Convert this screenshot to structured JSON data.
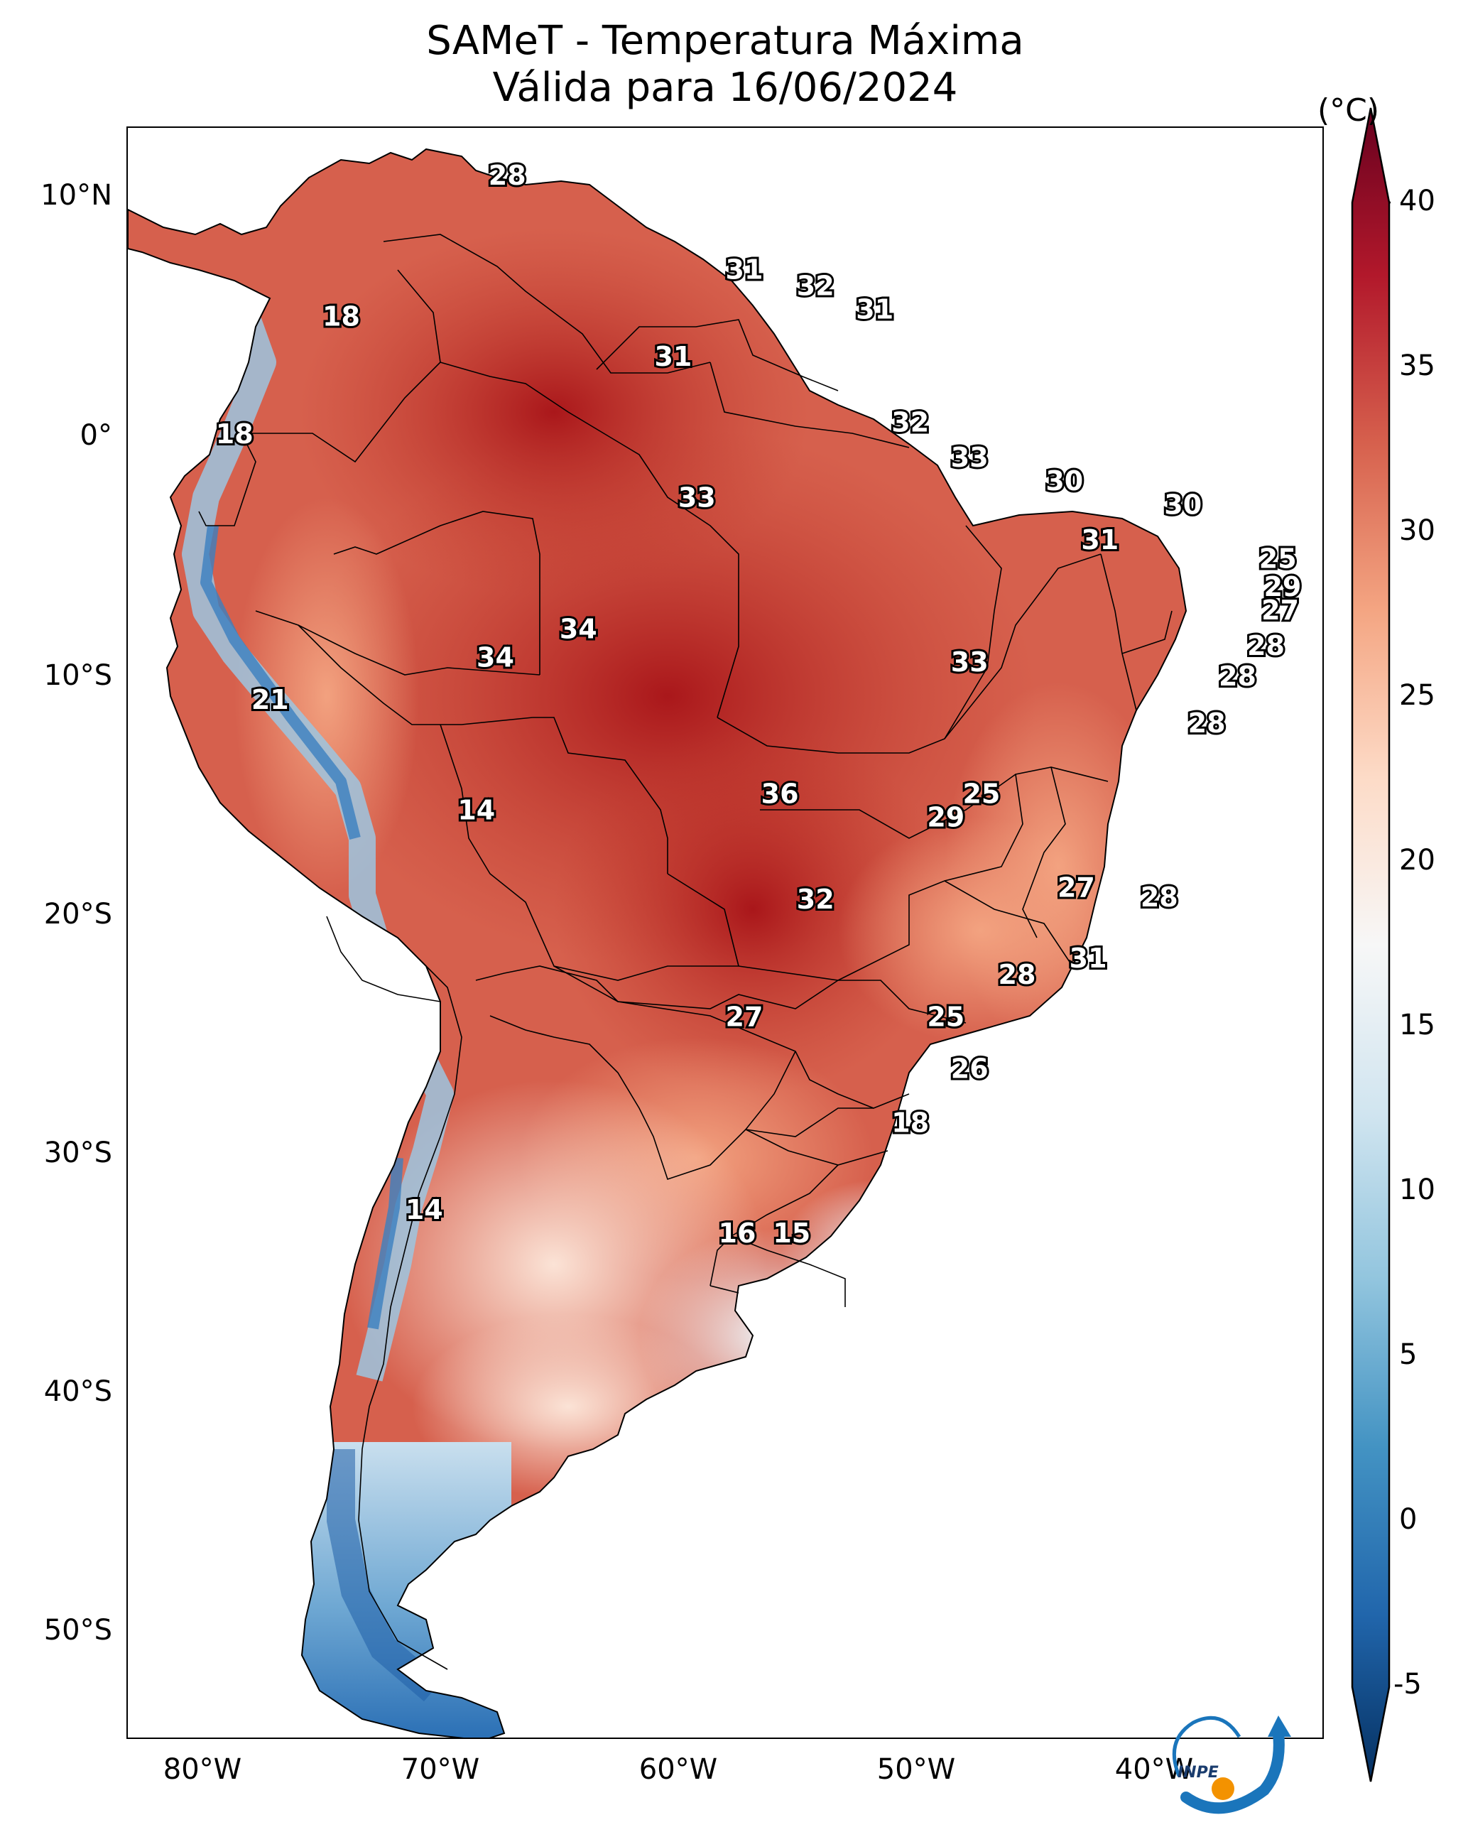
{
  "title": {
    "line1": "SAMeT - Temperatura Máxima",
    "line2": "Válida para 16/06/2024"
  },
  "axes": {
    "lat_ticks": [
      "10°N",
      "0°",
      "10°S",
      "20°S",
      "30°S",
      "40°S",
      "50°S"
    ],
    "lon_ticks": [
      "80°W",
      "70°W",
      "60°W",
      "50°W",
      "40°W"
    ]
  },
  "colorbar": {
    "unit": "(°C)",
    "min": -5,
    "max": 40,
    "ticks": [
      "40",
      "35",
      "30",
      "25",
      "20",
      "15",
      "10",
      "5",
      "0",
      "-5"
    ],
    "colors": [
      "#053061",
      "#2166ac",
      "#4393c3",
      "#92c5de",
      "#d1e5f0",
      "#f7f7f7",
      "#fddbc7",
      "#f4a582",
      "#d6604d",
      "#b2182b",
      "#67001f"
    ]
  },
  "map_labels": [
    {
      "text": "28",
      "lon": -67.5,
      "lat": 10.5
    },
    {
      "text": "18",
      "lon": -74.5,
      "lat": 4.5
    },
    {
      "text": "18",
      "lon": -79.0,
      "lat": -0.5
    },
    {
      "text": "31",
      "lon": -57.5,
      "lat": 6.5
    },
    {
      "text": "32",
      "lon": -54.5,
      "lat": 5.8
    },
    {
      "text": "31",
      "lon": -52.0,
      "lat": 4.8
    },
    {
      "text": "31",
      "lon": -60.5,
      "lat": 2.8
    },
    {
      "text": "32",
      "lon": -50.5,
      "lat": 0.0
    },
    {
      "text": "33",
      "lon": -48.0,
      "lat": -1.5
    },
    {
      "text": "30",
      "lon": -44.0,
      "lat": -2.5
    },
    {
      "text": "30",
      "lon": -39.0,
      "lat": -3.5
    },
    {
      "text": "31",
      "lon": -42.5,
      "lat": -5.0
    },
    {
      "text": "25",
      "lon": -35.0,
      "lat": -5.8
    },
    {
      "text": "29",
      "lon": -34.8,
      "lat": -7.0
    },
    {
      "text": "27",
      "lon": -34.9,
      "lat": -8.0
    },
    {
      "text": "28",
      "lon": -35.5,
      "lat": -9.5
    },
    {
      "text": "28",
      "lon": -36.7,
      "lat": -10.8
    },
    {
      "text": "33",
      "lon": -59.5,
      "lat": -3.2
    },
    {
      "text": "34",
      "lon": -64.5,
      "lat": -8.8
    },
    {
      "text": "34",
      "lon": -68.0,
      "lat": -10.0
    },
    {
      "text": "33",
      "lon": -48.0,
      "lat": -10.2
    },
    {
      "text": "28",
      "lon": -38.0,
      "lat": -12.8
    },
    {
      "text": "21",
      "lon": -77.5,
      "lat": -11.8
    },
    {
      "text": "36",
      "lon": -56.0,
      "lat": -15.8
    },
    {
      "text": "25",
      "lon": -47.5,
      "lat": -15.8
    },
    {
      "text": "29",
      "lon": -49.0,
      "lat": -16.8
    },
    {
      "text": "14",
      "lon": -68.8,
      "lat": -16.5
    },
    {
      "text": "27",
      "lon": -43.5,
      "lat": -19.8
    },
    {
      "text": "28",
      "lon": -40.0,
      "lat": -20.2
    },
    {
      "text": "32",
      "lon": -54.5,
      "lat": -20.3
    },
    {
      "text": "31",
      "lon": -43.0,
      "lat": -22.8
    },
    {
      "text": "28",
      "lon": -46.0,
      "lat": -23.5
    },
    {
      "text": "27",
      "lon": -57.5,
      "lat": -25.3
    },
    {
      "text": "25",
      "lon": -49.0,
      "lat": -25.3
    },
    {
      "text": "26",
      "lon": -48.0,
      "lat": -27.5
    },
    {
      "text": "18",
      "lon": -50.5,
      "lat": -29.8
    },
    {
      "text": "14",
      "lon": -71.0,
      "lat": -33.5
    },
    {
      "text": "16",
      "lon": -57.8,
      "lat": -34.5
    },
    {
      "text": "15",
      "lon": -55.5,
      "lat": -34.5
    }
  ],
  "logo": {
    "text": "INPE"
  }
}
